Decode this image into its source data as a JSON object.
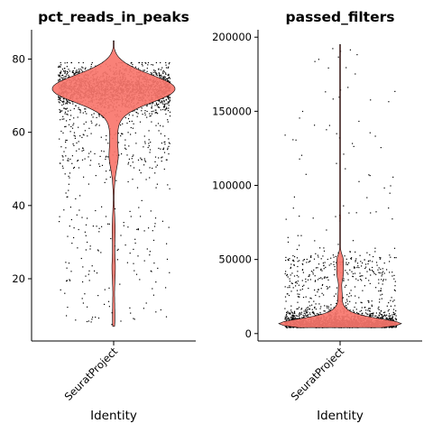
{
  "chart_data": [
    {
      "type": "violin",
      "title": "pct_reads_in_peaks",
      "xlabel": "Identity",
      "ylabel": "",
      "categories": [
        "SeuratProject"
      ],
      "ylim": [
        3,
        88
      ],
      "yticks": [
        20,
        40,
        60,
        80
      ],
      "ytick_labels": [
        "20",
        "40",
        "60",
        "80"
      ],
      "fill_color": "#F8766D",
      "distribution": {
        "min": 7,
        "max": 85,
        "mode": 72,
        "q1": 68,
        "median": 72,
        "q3": 75
      },
      "grid": false,
      "legend": "none"
    },
    {
      "type": "violin",
      "title": "passed_filters",
      "xlabel": "Identity",
      "ylabel": "",
      "categories": [
        "SeuratProject"
      ],
      "ylim": [
        -5000,
        205000
      ],
      "yticks": [
        0,
        50000,
        100000,
        150000,
        200000
      ],
      "ytick_labels": [
        "0",
        "50000",
        "100000",
        "150000",
        "200000"
      ],
      "fill_color": "#F8766D",
      "distribution": {
        "min": 4000,
        "max": 195000,
        "mode": 8000,
        "q1": 6000,
        "median": 9000,
        "q3": 13000
      },
      "grid": false,
      "legend": "none"
    }
  ]
}
